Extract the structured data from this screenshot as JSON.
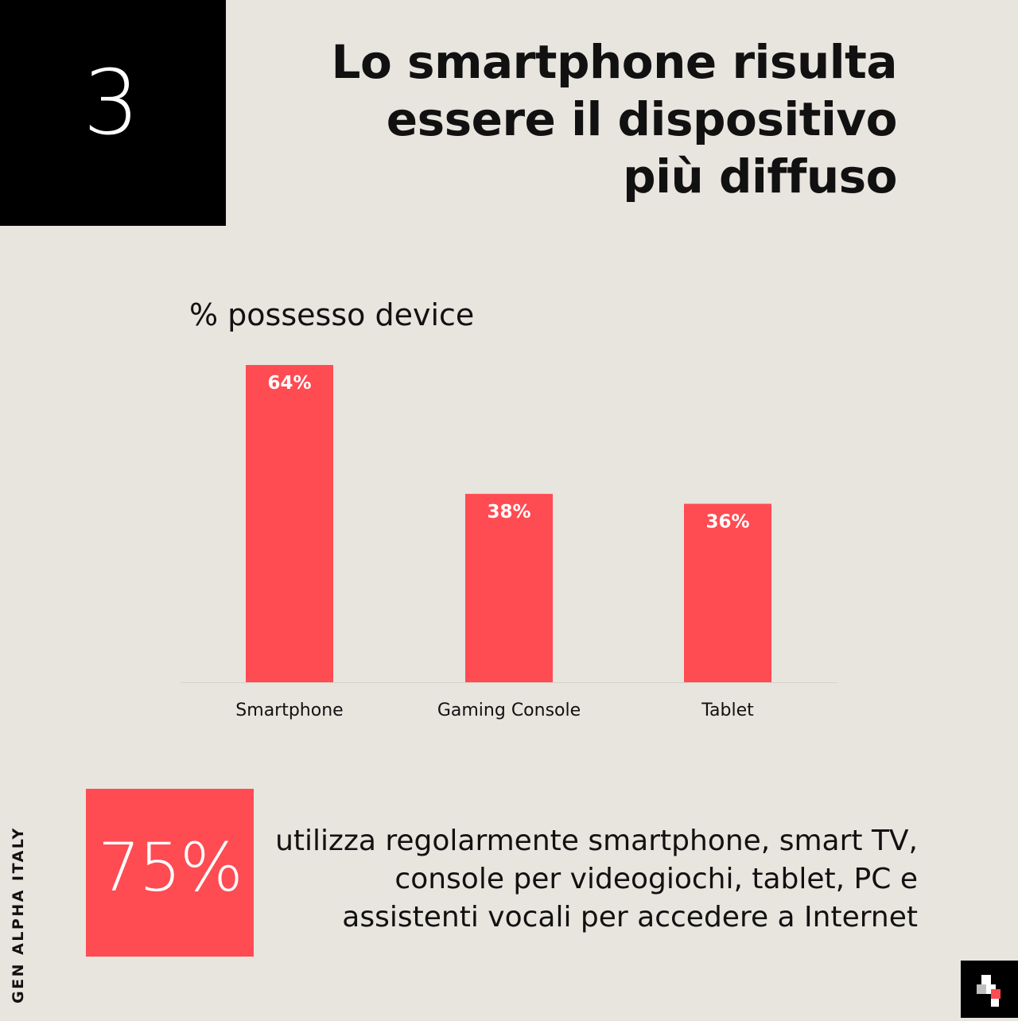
{
  "slide_number": "3",
  "headline": "Lo smartphone risulta essere il dispositivo più diffuso",
  "stat": {
    "value": "75%",
    "text": "utilizza regolarmente smartphone, smart TV, console per videogiochi, tablet, PC e assistenti vocali per accedere a Internet"
  },
  "brand_label": "GEN ALPHA ITALY",
  "colors": {
    "accent": "#ff4b52",
    "background": "#e8e4de",
    "dark": "#000000"
  },
  "chart_data": {
    "type": "bar",
    "title": "% possesso device",
    "categories": [
      "Smartphone",
      "Gaming Console",
      "Tablet"
    ],
    "values": [
      64,
      38,
      36
    ],
    "value_labels": [
      "64%",
      "38%",
      "36%"
    ],
    "ylim": [
      0,
      64
    ],
    "grid": false,
    "legend": "none"
  }
}
